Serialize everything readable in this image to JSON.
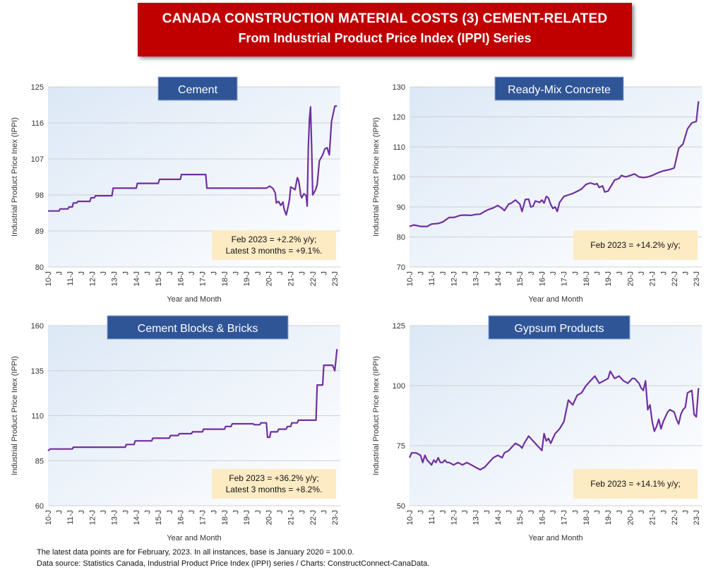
{
  "header": {
    "line1": "CANADA CONSTRUCTION MATERIAL COSTS (3) CEMENT-RELATED",
    "line2": "From Industrial Product Price Index (IPPI) Series"
  },
  "footer": {
    "note": "The latest data points are for February, 2023. In all instances, base is January 2020 = 100.0.",
    "source": "Data source: Statistics Canada, Industrial Product Price Index (IPPI) series / Charts: ConstructConnect-CanaData."
  },
  "colors": {
    "series": "#7030a0",
    "title_box": "#2f5597",
    "annotation": "#fdebc4",
    "banner": "#c00000"
  },
  "chart_data": [
    {
      "type": "line",
      "title": "Cement",
      "ylabel": "Industrial Product Price Inex (IPPI)",
      "xlabel": "Year and Month",
      "ylim": [
        80,
        125
      ],
      "yticks": [
        "125",
        "116",
        "107",
        "98",
        "89",
        "80"
      ],
      "ytick_values": [
        125,
        116,
        107,
        98,
        89,
        80
      ],
      "xticks": [
        "10-J",
        "J",
        "11-J",
        "J",
        "12-J",
        "J",
        "13-J",
        "J",
        "14-J",
        "J",
        "15-J",
        "J",
        "16-J",
        "J",
        "17-J",
        "J",
        "18-J",
        "J",
        "19-J",
        "J",
        "20-J",
        "J",
        "21-J",
        "J",
        "22-J",
        "J",
        "23-J"
      ],
      "x_range": [
        2010.0,
        2023.25
      ],
      "annotation": [
        "Feb 2023 = +2.2% y/y;",
        "Latest 3 months = +9.1%."
      ],
      "series": [
        {
          "x": [
            2010.0,
            2010.5,
            2010.55,
            2010.9,
            2010.95,
            2011.1,
            2011.15,
            2011.3,
            2011.35,
            2011.9,
            2011.95,
            2012.1,
            2012.15,
            2012.9,
            2012.95,
            2014.0,
            2014.05,
            2015.0,
            2015.05,
            2016.0,
            2016.05,
            2017.15,
            2017.2,
            2019.9,
            2020.05,
            2020.2,
            2020.3,
            2020.35,
            2020.45,
            2020.55,
            2020.65,
            2020.7,
            2020.8,
            2020.9,
            2020.95,
            2021.0,
            2021.1,
            2021.2,
            2021.3,
            2021.35,
            2021.4,
            2021.45,
            2021.5,
            2021.6,
            2021.7,
            2021.75,
            2021.8,
            2021.85,
            2021.9,
            2021.95,
            2022.0,
            2022.1,
            2022.15,
            2022.2,
            2022.3,
            2022.35,
            2022.45,
            2022.55,
            2022.65,
            2022.75,
            2022.85,
            2023.0,
            2023.1
          ],
          "values": [
            94,
            94,
            94.5,
            94.5,
            95,
            95,
            96,
            96,
            96.4,
            96.4,
            97.3,
            97.3,
            97.8,
            97.8,
            99.7,
            99.7,
            100.9,
            100.9,
            101.9,
            101.9,
            103.1,
            103.1,
            99.7,
            99.7,
            100.2,
            99.6,
            98.5,
            96,
            96.4,
            95.4,
            96.2,
            94.5,
            93,
            95.5,
            97,
            100,
            99.7,
            99.3,
            102.3,
            101.8,
            100.3,
            98,
            97.3,
            98.3,
            97.8,
            95.2,
            110,
            117,
            120,
            110,
            98,
            99,
            99.6,
            100.5,
            106.5,
            107,
            108,
            109.5,
            109.8,
            108,
            116.3,
            120.2,
            120.2
          ]
        }
      ]
    },
    {
      "type": "line",
      "title": "Ready-Mix Concrete",
      "ylabel": "Industrial Product Price Inex (IPPI)",
      "xlabel": "Year and Month",
      "ylim": [
        70,
        130
      ],
      "yticks": [
        "130",
        "120",
        "110",
        "100",
        "90",
        "80",
        "70"
      ],
      "ytick_values": [
        130,
        120,
        110,
        100,
        90,
        80,
        70
      ],
      "xticks": [
        "10-J",
        "J",
        "11-J",
        "J",
        "12-J",
        "J",
        "13-J",
        "J",
        "14-J",
        "J",
        "15-J",
        "J",
        "16-J",
        "J",
        "17-J",
        "J",
        "18-J",
        "J",
        "19-J",
        "J",
        "20-J",
        "J",
        "21-J",
        "J",
        "22-J",
        "J",
        "23-J"
      ],
      "x_range": [
        2010.0,
        2023.25
      ],
      "annotation": [
        "Feb 2023 = +14.2% y/y;"
      ],
      "series": [
        {
          "x": [
            2010.0,
            2010.2,
            2010.5,
            2010.8,
            2011.0,
            2011.3,
            2011.5,
            2011.8,
            2012.0,
            2012.3,
            2012.5,
            2012.8,
            2013.0,
            2013.2,
            2013.4,
            2013.6,
            2013.8,
            2014.0,
            2014.1,
            2014.2,
            2014.3,
            2014.5,
            2014.6,
            2014.8,
            2015.0,
            2015.1,
            2015.25,
            2015.4,
            2015.5,
            2015.6,
            2015.7,
            2015.9,
            2016.0,
            2016.1,
            2016.2,
            2016.3,
            2016.4,
            2016.5,
            2016.6,
            2016.7,
            2016.8,
            2016.9,
            2017.0,
            2017.2,
            2017.4,
            2017.6,
            2017.8,
            2018.0,
            2018.2,
            2018.4,
            2018.5,
            2018.6,
            2018.75,
            2018.85,
            2019.0,
            2019.3,
            2019.5,
            2019.6,
            2019.8,
            2020.0,
            2020.2,
            2020.4,
            2020.6,
            2020.8,
            2021.0,
            2021.3,
            2021.5,
            2021.8,
            2022.0,
            2022.2,
            2022.4,
            2022.6,
            2022.8,
            2023.0,
            2023.1
          ],
          "values": [
            83.5,
            84,
            83.5,
            83.5,
            84.3,
            84.5,
            85,
            86.5,
            86.5,
            87.2,
            87.3,
            87.2,
            87.5,
            87.6,
            88.5,
            89.2,
            89.7,
            90.5,
            90,
            89.5,
            88.8,
            91,
            91.2,
            92.3,
            91,
            88.5,
            92.5,
            92.6,
            90,
            90.2,
            92,
            91.5,
            92.3,
            91.3,
            93.5,
            93,
            90.8,
            89.5,
            90,
            88.5,
            91.5,
            92.5,
            93.5,
            94,
            94.5,
            95.2,
            96,
            97.5,
            98,
            97.5,
            97.8,
            96.5,
            97,
            95,
            95.3,
            99,
            99.5,
            100.5,
            100,
            100.5,
            101,
            100,
            99.8,
            100,
            100.5,
            101.5,
            102,
            102.5,
            103,
            109.5,
            111,
            116,
            118,
            118.5,
            125.2
          ]
        }
      ]
    },
    {
      "type": "line",
      "title": "Cement Blocks & Bricks",
      "ylabel": "Industrial Product Price Inex (IPPI)",
      "xlabel": "Year and Month",
      "ylim": [
        60,
        160
      ],
      "yticks": [
        "160",
        "135",
        "110",
        "85",
        "60"
      ],
      "ytick_values": [
        160,
        135,
        110,
        85,
        60
      ],
      "xticks": [
        "10-J",
        "J",
        "11-J",
        "J",
        "12-J",
        "J",
        "13-J",
        "J",
        "14-J",
        "J",
        "15-J",
        "J",
        "16-J",
        "J",
        "17-J",
        "J",
        "18-J",
        "J",
        "19-J",
        "J",
        "20-J",
        "J",
        "21-J",
        "J",
        "22-J",
        "J",
        "23-J"
      ],
      "x_range": [
        2010.0,
        2023.25
      ],
      "annotation": [
        "Feb 2023 = +36.2% y/y;",
        "Latest 3 months = +8.2%."
      ],
      "series": [
        {
          "x": [
            2010.0,
            2010.1,
            2011.1,
            2011.15,
            2013.5,
            2013.55,
            2013.9,
            2013.95,
            2014.7,
            2014.75,
            2015.5,
            2015.55,
            2015.9,
            2015.95,
            2016.2,
            2016.25,
            2016.5,
            2016.55,
            2017.0,
            2017.05,
            2018.0,
            2018.05,
            2018.3,
            2018.35,
            2019.3,
            2019.35,
            2019.6,
            2019.65,
            2019.9,
            2019.95,
            2020.05,
            2020.1,
            2020.4,
            2020.45,
            2020.8,
            2020.85,
            2021.0,
            2021.05,
            2021.3,
            2021.35,
            2022.15,
            2022.2,
            2022.45,
            2022.5,
            2022.9,
            2023.0,
            2023.1
          ],
          "values": [
            90.5,
            91.5,
            91.5,
            92.5,
            92.5,
            94,
            94,
            96,
            96,
            97.5,
            97.5,
            99,
            99,
            100,
            100,
            100,
            100,
            101,
            101,
            102.5,
            102.5,
            104,
            104,
            105.5,
            105.5,
            105,
            105,
            106,
            106,
            98,
            98,
            101,
            101,
            102.5,
            102.5,
            104,
            104,
            106,
            106,
            107.5,
            107.5,
            127,
            127,
            138,
            138,
            135,
            147
          ]
        }
      ]
    },
    {
      "type": "line",
      "title": "Gypsum Products",
      "ylabel": "Industrial Product Price Inex (IPPI)",
      "xlabel": "Year and Month",
      "ylim": [
        50,
        125
      ],
      "yticks": [
        "125",
        "100",
        "75",
        "50"
      ],
      "ytick_values": [
        125,
        100,
        75,
        50
      ],
      "xticks": [
        "10-J",
        "J",
        "11-J",
        "J",
        "12-J",
        "J",
        "13-J",
        "J",
        "14-J",
        "J",
        "15-J",
        "J",
        "16-J",
        "J",
        "17-J",
        "J",
        "18-J",
        "J",
        "19-J",
        "J",
        "20-J",
        "J",
        "21-J",
        "J",
        "22-J",
        "J",
        "23-J"
      ],
      "x_range": [
        2010.0,
        2023.25
      ],
      "annotation": [
        "Feb 2023 = +14.1% y/y;"
      ],
      "series": [
        {
          "x": [
            2010.0,
            2010.1,
            2010.3,
            2010.5,
            2010.6,
            2010.7,
            2010.8,
            2010.9,
            2011.0,
            2011.1,
            2011.2,
            2011.3,
            2011.4,
            2011.5,
            2011.6,
            2011.7,
            2011.8,
            2012.0,
            2012.2,
            2012.4,
            2012.6,
            2012.8,
            2013.0,
            2013.2,
            2013.4,
            2013.6,
            2013.7,
            2013.8,
            2014.0,
            2014.2,
            2014.3,
            2014.5,
            2014.6,
            2014.8,
            2015.0,
            2015.1,
            2015.2,
            2015.4,
            2015.6,
            2015.8,
            2016.0,
            2016.1,
            2016.2,
            2016.3,
            2016.4,
            2016.6,
            2016.8,
            2017.0,
            2017.2,
            2017.4,
            2017.6,
            2017.8,
            2018.0,
            2018.2,
            2018.4,
            2018.6,
            2018.8,
            2019.0,
            2019.1,
            2019.3,
            2019.5,
            2019.7,
            2019.9,
            2020.1,
            2020.2,
            2020.4,
            2020.5,
            2020.6,
            2020.7,
            2020.8,
            2020.9,
            2021.0,
            2021.1,
            2021.2,
            2021.3,
            2021.4,
            2021.5,
            2021.7,
            2021.8,
            2022.0,
            2022.1,
            2022.2,
            2022.3,
            2022.4,
            2022.5,
            2022.6,
            2022.8,
            2022.9,
            2023.0,
            2023.1
          ],
          "values": [
            70,
            72,
            72,
            71,
            68,
            71,
            69,
            68,
            67,
            69,
            68,
            70,
            68,
            68,
            69,
            68,
            68,
            67,
            68,
            67,
            68,
            67,
            66,
            65,
            66,
            68,
            69,
            70,
            71,
            70,
            72,
            73,
            74,
            76,
            75,
            74,
            76,
            79,
            77,
            75,
            73,
            80,
            77,
            78,
            76,
            80,
            82,
            85,
            94,
            92,
            96,
            97,
            100,
            102,
            104,
            101,
            102,
            103,
            106,
            103,
            104,
            102,
            101,
            103,
            103,
            101,
            99,
            98,
            102,
            90,
            92,
            85,
            81,
            83,
            86,
            82,
            85,
            89,
            90,
            89,
            86,
            84,
            88,
            90,
            91,
            97,
            98,
            88,
            87,
            99
          ]
        }
      ]
    }
  ]
}
